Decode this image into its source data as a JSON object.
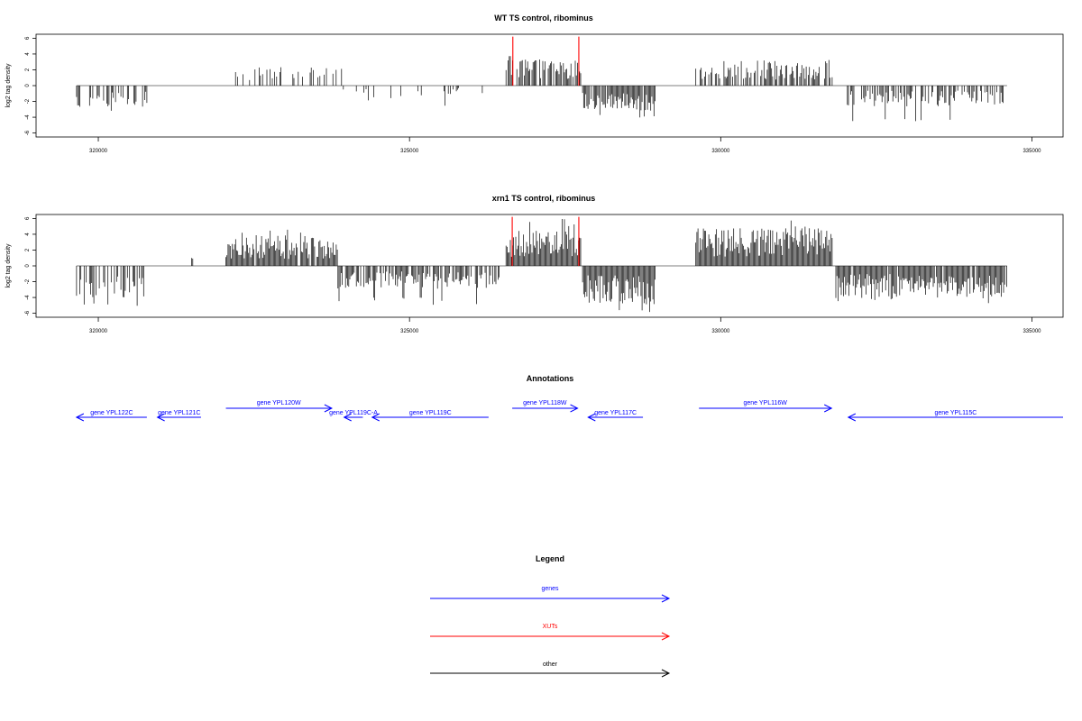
{
  "chart_data": [
    {
      "id": "wt",
      "type": "bar",
      "title": "WT TS control, ribominus",
      "ylabel": "log2 tag density",
      "xlim": [
        319000,
        335500
      ],
      "ylim": [
        -6.5,
        6.5
      ],
      "x_ticks": [
        320000,
        325000,
        330000,
        335000
      ],
      "y_ticks": [
        -6,
        -4,
        -2,
        0,
        2,
        4,
        6
      ],
      "baseline_range": [
        319650,
        334600
      ],
      "highlight_color": "#ff0000",
      "bar_color": "#000000",
      "highlights": [
        {
          "x": 326660,
          "y": 6.2
        },
        {
          "x": 327720,
          "y": 6.2
        }
      ],
      "regions": [
        {
          "from": 319650,
          "to": 320800,
          "mean": -2.2,
          "max": 4.4,
          "sign": -1,
          "density": 0.35,
          "sparse": 1
        },
        {
          "from": 322100,
          "to": 323950,
          "mean": 1.6,
          "max": 2.5,
          "sign": 1,
          "density": 0.3,
          "sparse": 1
        },
        {
          "from": 323850,
          "to": 325700,
          "mean": -1.3,
          "max": 2.9,
          "sign": -1,
          "density": 0.2,
          "sparse": 1
        },
        {
          "from": 325700,
          "to": 326350,
          "mean": -0.8,
          "max": 1.1,
          "sign": -1,
          "density": 0.15,
          "sparse": 1
        },
        {
          "from": 326550,
          "to": 327760,
          "mean": 2.3,
          "max": 4.2,
          "sign": 1,
          "density": 0.8,
          "sparse": 1
        },
        {
          "from": 327780,
          "to": 328950,
          "mean": -2.2,
          "max": 4.5,
          "sign": -1,
          "density": 0.9,
          "sparse": 1
        },
        {
          "from": 329600,
          "to": 331800,
          "mean": 2.2,
          "max": 3.9,
          "sign": 1,
          "density": 0.65,
          "sparse": 1
        },
        {
          "from": 332000,
          "to": 334600,
          "mean": -1.8,
          "max": 4.5,
          "sign": -1,
          "density": 0.55,
          "sparse": 1
        }
      ]
    },
    {
      "id": "xrn1",
      "type": "bar",
      "title": "xrn1 TS control, ribominus",
      "ylabel": "log2 tag density",
      "xlim": [
        319000,
        335500
      ],
      "ylim": [
        -6.5,
        6.5
      ],
      "x_ticks": [
        320000,
        325000,
        330000,
        335000
      ],
      "y_ticks": [
        -6,
        -4,
        -2,
        0,
        2,
        4,
        6
      ],
      "baseline_range": [
        319650,
        334600
      ],
      "highlight_color": "#ff0000",
      "bar_color": "#000000",
      "highlights": [
        {
          "x": 326650,
          "y": 6.2
        },
        {
          "x": 327720,
          "y": 6.2
        }
      ],
      "regions": [
        {
          "from": 319650,
          "to": 320800,
          "mean": -2.8,
          "max": 5.9,
          "sign": -1,
          "density": 0.5,
          "sparse": 1
        },
        {
          "from": 321500,
          "to": 321520,
          "mean": 0.9,
          "max": 1.0,
          "sign": 1,
          "density": 1.0,
          "sparse": 1
        },
        {
          "from": 322050,
          "to": 323850,
          "mean": 2.5,
          "max": 4.6,
          "sign": 1,
          "density": 0.95,
          "sparse": 1
        },
        {
          "from": 323850,
          "to": 326450,
          "mean": -2.0,
          "max": 5.0,
          "sign": -1,
          "density": 0.75,
          "sparse": 1
        },
        {
          "from": 326550,
          "to": 327760,
          "mean": 3.2,
          "max": 6.2,
          "sign": 1,
          "density": 1.0,
          "sparse": 1
        },
        {
          "from": 327780,
          "to": 328950,
          "mean": -3.4,
          "max": 6.1,
          "sign": -1,
          "density": 1.0,
          "sparse": 1
        },
        {
          "from": 329600,
          "to": 331800,
          "mean": 3.3,
          "max": 5.8,
          "sign": 1,
          "density": 1.0,
          "sparse": 1
        },
        {
          "from": 331850,
          "to": 334600,
          "mean": -2.8,
          "max": 4.8,
          "sign": -1,
          "density": 0.95,
          "sparse": 1
        }
      ]
    }
  ],
  "annotations": {
    "title": "Annotations",
    "color": "#0000ff",
    "xlim": [
      319000,
      335500
    ],
    "genes": [
      {
        "label": "gene YPL122C",
        "start": 319650,
        "end": 320780,
        "strand": "-",
        "row": 1
      },
      {
        "label": "gene YPL121C",
        "start": 320950,
        "end": 321650,
        "strand": "-",
        "row": 1
      },
      {
        "label": "gene YPL120W",
        "start": 322050,
        "end": 323750,
        "strand": "+",
        "row": 0
      },
      {
        "label": "gene YPL119C-A",
        "start": 323950,
        "end": 324250,
        "strand": "-",
        "row": 1
      },
      {
        "label": "gene YPL119C",
        "start": 324400,
        "end": 326270,
        "strand": "-",
        "row": 1
      },
      {
        "label": "gene YPL118W",
        "start": 326650,
        "end": 327700,
        "strand": "+",
        "row": 0
      },
      {
        "label": "gene YPL117C",
        "start": 327870,
        "end": 328750,
        "strand": "-",
        "row": 1
      },
      {
        "label": "gene YPL116W",
        "start": 329650,
        "end": 331780,
        "strand": "+",
        "row": 0
      },
      {
        "label": "gene YPL115C",
        "start": 332050,
        "end": 335500,
        "strand": "-",
        "row": 1
      }
    ]
  },
  "legend": {
    "title": "Legend",
    "items": [
      {
        "label": "genes",
        "color": "#0000ff"
      },
      {
        "label": "XUTs",
        "color": "#ff0000"
      },
      {
        "label": "other",
        "color": "#000000"
      }
    ]
  }
}
